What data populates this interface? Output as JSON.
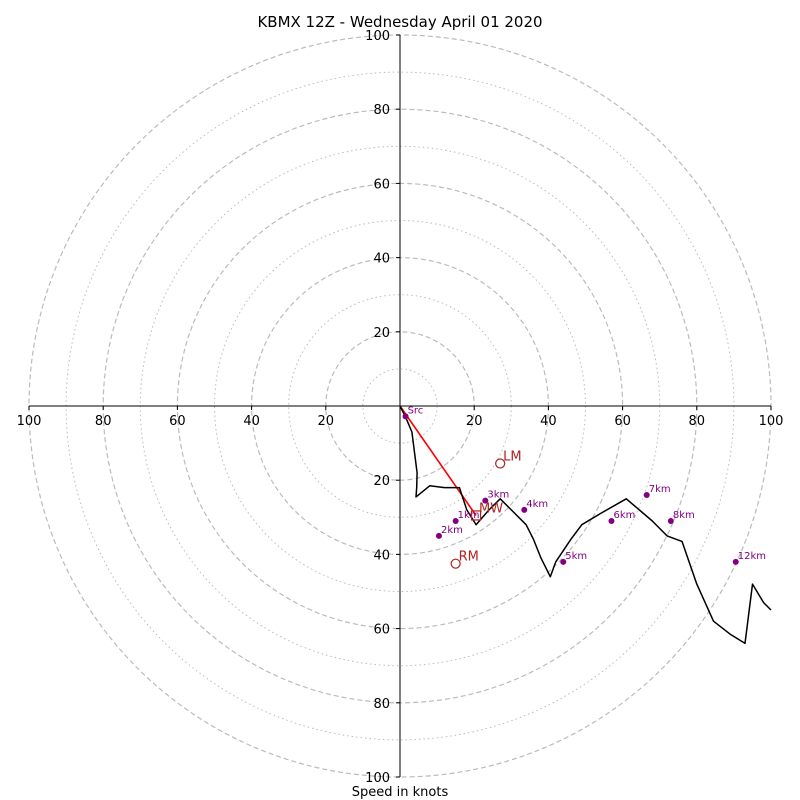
{
  "chart_data": {
    "type": "line",
    "title": "KBMX 12Z - Wednesday April 01 2020",
    "xlabel": "Speed in knots",
    "ylabel": "",
    "xlim": [
      -100,
      100
    ],
    "ylim": [
      -100,
      100
    ],
    "rings": [
      20,
      40,
      60,
      80,
      100
    ],
    "minor_rings": [
      10,
      30,
      50,
      70,
      90
    ],
    "tick_labels": {
      "x": [
        "100",
        "80",
        "60",
        "40",
        "20",
        "20",
        "40",
        "60",
        "80",
        "100"
      ],
      "y": [
        "100",
        "80",
        "60",
        "40",
        "20",
        "20",
        "40",
        "60",
        "80",
        "100"
      ]
    },
    "colors": {
      "hodograph": "#000000",
      "height_marker": "#800080",
      "storm_motion": "#b22222",
      "shear_vector": "#ff0000",
      "ring": "#bbbbbb",
      "axis": "#000000"
    },
    "series": [
      {
        "name": "hodograph",
        "u": [
          0.0,
          1.5,
          3.2,
          4.6,
          4.5,
          4.3,
          8.0,
          12.0,
          16.0,
          18.0,
          20.5,
          24.0,
          27.0,
          30.0,
          34.0,
          36.0,
          38.0,
          40.5,
          42.0,
          46.0,
          49.0,
          54.0,
          61.0,
          68.0,
          72.0,
          76.0,
          80.0,
          84.5,
          89.0,
          93.0,
          95.0,
          98.0,
          100.0
        ],
        "v": [
          0.0,
          -3.0,
          -7.0,
          -18.0,
          -22.0,
          -24.5,
          -21.5,
          -22.0,
          -22.0,
          -28.0,
          -32.0,
          -28.0,
          -25.0,
          -28.0,
          -32.0,
          -36.0,
          -41.0,
          -46.0,
          -42.0,
          -36.0,
          -32.0,
          -29.0,
          -25.0,
          -31.0,
          -35.0,
          -36.5,
          -48.0,
          -58.0,
          -61.5,
          -64.0,
          -48.0,
          -53.0,
          -55.0
        ]
      }
    ],
    "points": [
      {
        "label": "Src",
        "u": 1.5,
        "v": -2.8
      },
      {
        "label": "1km",
        "u": 15.0,
        "v": -31.0
      },
      {
        "label": "2km",
        "u": 10.5,
        "v": -35.0
      },
      {
        "label": "3km",
        "u": 23.0,
        "v": -25.5
      },
      {
        "label": "4km",
        "u": 33.5,
        "v": -28.0
      },
      {
        "label": "5km",
        "u": 44.0,
        "v": -42.0
      },
      {
        "label": "6km",
        "u": 57.0,
        "v": -31.0
      },
      {
        "label": "7km",
        "u": 66.5,
        "v": -24.0
      },
      {
        "label": "8km",
        "u": 73.0,
        "v": -31.0
      },
      {
        "label": "12km",
        "u": 90.5,
        "v": -42.0
      }
    ],
    "storm_motions": [
      {
        "label": "LM",
        "u": 27.0,
        "v": -15.5
      },
      {
        "label": "MW",
        "u": 20.5,
        "v": -29.5
      },
      {
        "label": "RM",
        "u": 15.0,
        "v": -42.5
      }
    ],
    "shear_vector": {
      "u0": 0.0,
      "v0": 0.0,
      "u1": 20.5,
      "v1": -29.5
    }
  }
}
